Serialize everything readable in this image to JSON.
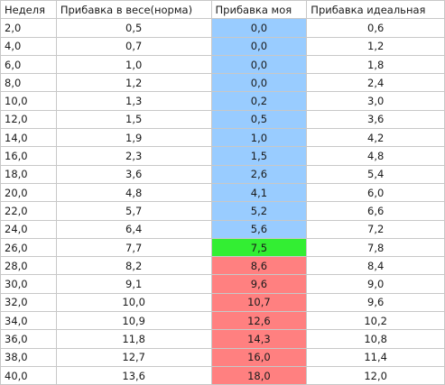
{
  "headers": [
    "Неделя",
    "Прибавка в весе(норма)",
    "Прибавка моя",
    "Прибавка идеальная"
  ],
  "colors": {
    "blue": "#99ccff",
    "green": "#33ee33",
    "red": "#ff8080",
    "grid": "#c8c8c8"
  },
  "rows": [
    {
      "week": "2,0",
      "norm": "0,5",
      "mine": "0,0",
      "ideal": "0,6",
      "mine_color": "blue"
    },
    {
      "week": "4,0",
      "norm": "0,7",
      "mine": "0,0",
      "ideal": "1,2",
      "mine_color": "blue"
    },
    {
      "week": "6,0",
      "norm": "1,0",
      "mine": "0,0",
      "ideal": "1,8",
      "mine_color": "blue"
    },
    {
      "week": "8,0",
      "norm": "1,2",
      "mine": "0,0",
      "ideal": "2,4",
      "mine_color": "blue"
    },
    {
      "week": "10,0",
      "norm": "1,3",
      "mine": "0,2",
      "ideal": "3,0",
      "mine_color": "blue"
    },
    {
      "week": "12,0",
      "norm": "1,5",
      "mine": "0,5",
      "ideal": "3,6",
      "mine_color": "blue"
    },
    {
      "week": "14,0",
      "norm": "1,9",
      "mine": "1,0",
      "ideal": "4,2",
      "mine_color": "blue"
    },
    {
      "week": "16,0",
      "norm": "2,3",
      "mine": "1,5",
      "ideal": "4,8",
      "mine_color": "blue"
    },
    {
      "week": "18,0",
      "norm": "3,6",
      "mine": "2,6",
      "ideal": "5,4",
      "mine_color": "blue"
    },
    {
      "week": "20,0",
      "norm": "4,8",
      "mine": "4,1",
      "ideal": "6,0",
      "mine_color": "blue"
    },
    {
      "week": "22,0",
      "norm": "5,7",
      "mine": "5,2",
      "ideal": "6,6",
      "mine_color": "blue"
    },
    {
      "week": "24,0",
      "norm": "6,4",
      "mine": "5,6",
      "ideal": "7,2",
      "mine_color": "blue"
    },
    {
      "week": "26,0",
      "norm": "7,7",
      "mine": "7,5",
      "ideal": "7,8",
      "mine_color": "green"
    },
    {
      "week": "28,0",
      "norm": "8,2",
      "mine": "8,6",
      "ideal": "8,4",
      "mine_color": "red"
    },
    {
      "week": "30,0",
      "norm": "9,1",
      "mine": "9,6",
      "ideal": "9,0",
      "mine_color": "red"
    },
    {
      "week": "32,0",
      "norm": "10,0",
      "mine": "10,7",
      "ideal": "9,6",
      "mine_color": "red"
    },
    {
      "week": "34,0",
      "norm": "10,9",
      "mine": "12,6",
      "ideal": "10,2",
      "mine_color": "red"
    },
    {
      "week": "36,0",
      "norm": "11,8",
      "mine": "14,3",
      "ideal": "10,8",
      "mine_color": "red"
    },
    {
      "week": "38,0",
      "norm": "12,7",
      "mine": "16,0",
      "ideal": "11,4",
      "mine_color": "red"
    },
    {
      "week": "40,0",
      "norm": "13,6",
      "mine": "18,0",
      "ideal": "12,0",
      "mine_color": "red"
    }
  ]
}
